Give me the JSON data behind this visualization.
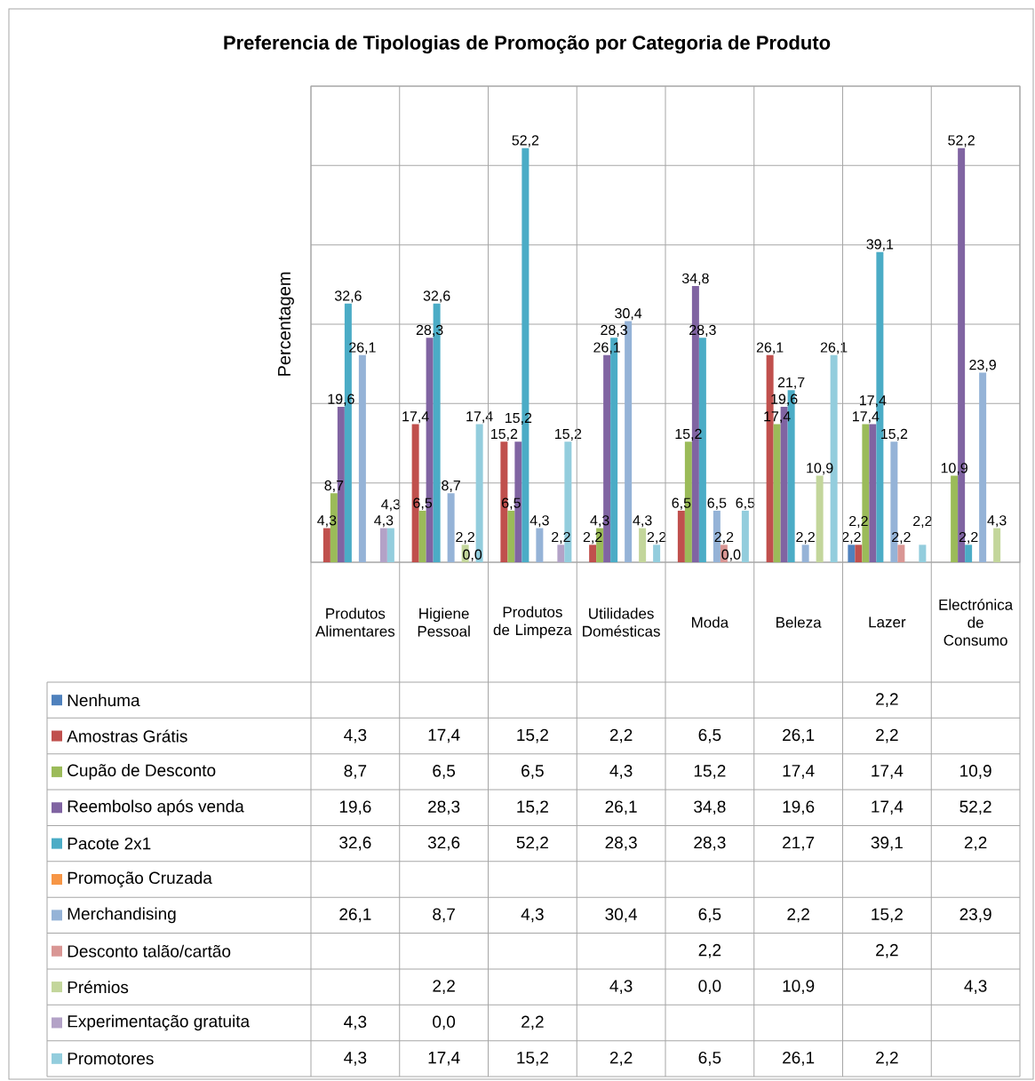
{
  "chart_data": {
    "type": "bar",
    "title": "Preferencia de Tipologias de Promoção por Categoria de Produto",
    "ylabel": "Percentagem",
    "categories": [
      "Produtos Alimentares",
      "Higiene Pessoal",
      "Produtos de Limpeza",
      "Utilidades Domésticas",
      "Moda",
      "Beleza",
      "Lazer",
      "Electrónica de Consumo"
    ],
    "series": [
      {
        "name": "Nenhuma",
        "color": "#4f81bd",
        "values": [
          null,
          null,
          null,
          null,
          null,
          null,
          2.2,
          null
        ],
        "value_labels": [
          null,
          null,
          null,
          null,
          null,
          null,
          "2,2",
          null
        ]
      },
      {
        "name": "Amostras Grátis",
        "color": "#c0504d",
        "values": [
          4.3,
          17.4,
          15.2,
          2.2,
          6.5,
          26.1,
          2.2,
          null
        ],
        "value_labels": [
          "4,3",
          "17,4",
          "15,2",
          "2,2",
          "6,5",
          "26,1",
          "2,2",
          null
        ]
      },
      {
        "name": "Cupão de Desconto",
        "color": "#9bbb59",
        "values": [
          8.7,
          6.5,
          6.5,
          4.3,
          15.2,
          17.4,
          17.4,
          10.9
        ],
        "value_labels": [
          "8,7",
          "6,5",
          "6,5",
          "4,3",
          "15,2",
          "17,4",
          "17,4",
          "10,9"
        ]
      },
      {
        "name": "Reembolso após venda",
        "color": "#8064a2",
        "values": [
          19.6,
          28.3,
          15.2,
          26.1,
          34.8,
          19.6,
          17.4,
          52.2
        ],
        "value_labels": [
          "19,6",
          "28,3",
          "15,2",
          "26,1",
          "34,8",
          "19,6",
          "17,4",
          "52,2"
        ]
      },
      {
        "name": "Pacote 2x1",
        "color": "#4bacc6",
        "values": [
          32.6,
          32.6,
          52.2,
          28.3,
          28.3,
          21.7,
          39.1,
          2.2
        ],
        "value_labels": [
          "32,6",
          "32,6",
          "52,2",
          "28,3",
          "28,3",
          "21,7",
          "39,1",
          "2,2"
        ]
      },
      {
        "name": "Promoção Cruzada",
        "color": "#f79646",
        "values": [
          null,
          null,
          null,
          null,
          null,
          null,
          null,
          null
        ],
        "value_labels": [
          null,
          null,
          null,
          null,
          null,
          null,
          null,
          null
        ]
      },
      {
        "name": "Merchandising",
        "color": "#95b3d7",
        "values": [
          26.1,
          8.7,
          4.3,
          30.4,
          6.5,
          2.2,
          15.2,
          23.9
        ],
        "value_labels": [
          "26,1",
          "8,7",
          "4,3",
          "30,4",
          "6,5",
          "2,2",
          "15,2",
          "23,9"
        ]
      },
      {
        "name": "Desconto talão/cartão",
        "color": "#d99694",
        "values": [
          null,
          null,
          null,
          null,
          2.2,
          null,
          2.2,
          null
        ],
        "value_labels": [
          null,
          null,
          null,
          null,
          "2,2",
          null,
          "2,2",
          null
        ]
      },
      {
        "name": "Prémios",
        "color": "#c3d69b",
        "values": [
          null,
          2.2,
          null,
          4.3,
          0.0,
          10.9,
          null,
          4.3
        ],
        "value_labels": [
          null,
          "2,2",
          null,
          "4,3",
          "0,0",
          "10,9",
          null,
          "4,3"
        ]
      },
      {
        "name": "Experimentação gratuita",
        "color": "#b3a2c7",
        "values": [
          4.3,
          0.0,
          2.2,
          null,
          null,
          null,
          null,
          null
        ],
        "value_labels": [
          "4,3",
          "0,0",
          "2,2",
          null,
          null,
          null,
          null,
          null
        ]
      },
      {
        "name": "Promotores",
        "color": "#93cddd",
        "values": [
          4.3,
          17.4,
          15.2,
          2.2,
          6.5,
          26.1,
          2.2,
          null
        ],
        "value_labels": [
          "4,3",
          "17,4",
          "15,2",
          "2,2",
          "6,5",
          "26,1",
          "2,2",
          null
        ]
      }
    ],
    "ylim": [
      0,
      60
    ],
    "yticks": [
      {
        "value": 0,
        "label": null
      },
      {
        "value": 10,
        "label": null
      },
      {
        "value": 20,
        "label": null
      },
      {
        "value": 30,
        "label": null
      },
      {
        "value": 40,
        "label": null
      },
      {
        "value": 50,
        "label": null
      },
      {
        "value": 60,
        "label": null
      }
    ],
    "grid": "y",
    "tick_labels": "x",
    "legend": "bottom"
  }
}
